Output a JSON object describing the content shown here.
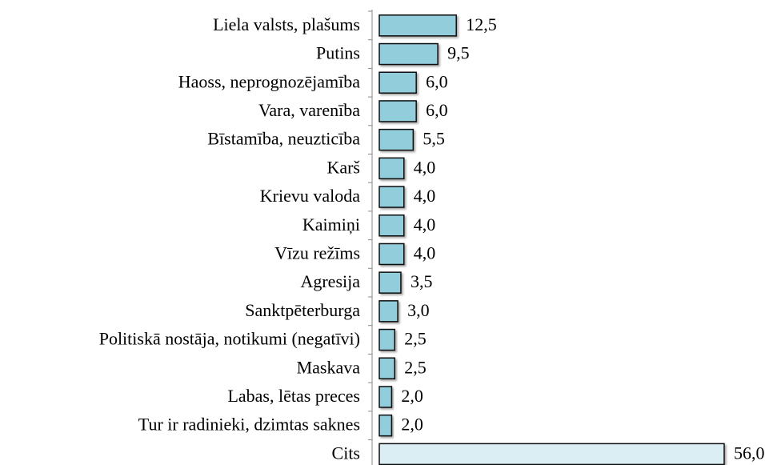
{
  "chart_data": {
    "type": "bar",
    "orientation": "horizontal",
    "categories": [
      "Liela valsts, plašums",
      "Putins",
      "Haoss, neprognozējamība",
      "Vara, varenība",
      "Bīstamība, neuzticība",
      "Karš",
      "Krievu valoda",
      "Kaimiņi",
      "Vīzu režīms",
      "Agresija",
      "Sanktpēterburga",
      "Politiskā nostāja, notikumi (negatīvi)",
      "Maskava",
      "Labas, lētas preces",
      "Tur ir radinieki, dzimtas saknes",
      "Cits"
    ],
    "values": [
      12.5,
      9.5,
      6.0,
      6.0,
      5.5,
      4.0,
      4.0,
      4.0,
      4.0,
      3.5,
      3.0,
      2.5,
      2.5,
      2.0,
      2.0,
      56.0
    ],
    "value_labels": [
      "12,5",
      "9,5",
      "6,0",
      "6,0",
      "5,5",
      "4,0",
      "4,0",
      "4,0",
      "4,0",
      "3,5",
      "3,0",
      "2,5",
      "2,5",
      "2,0",
      "2,0",
      "56,0"
    ],
    "colors": [
      "#92cddc",
      "#92cddc",
      "#92cddc",
      "#92cddc",
      "#92cddc",
      "#92cddc",
      "#92cddc",
      "#92cddc",
      "#92cddc",
      "#92cddc",
      "#92cddc",
      "#92cddc",
      "#92cddc",
      "#92cddc",
      "#92cddc",
      "#dbeef4"
    ]
  }
}
